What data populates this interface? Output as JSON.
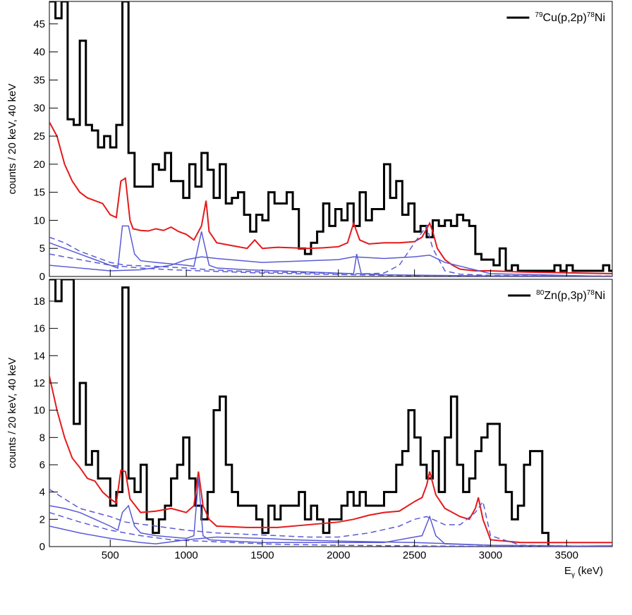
{
  "figure": {
    "xlabel_main": "E",
    "xlabel_sub": "γ",
    "xlabel_unit": " (keV)"
  },
  "colors": {
    "data": "#000000",
    "fit": "#e41a1c",
    "component": "#5a5ad6",
    "axis": "#000000"
  },
  "chart_data": [
    {
      "type": "histogram",
      "title": "",
      "legend": {
        "label_sup1": "79",
        "label_part1": "Cu(p,2p)",
        "label_sup2": "78",
        "label_part2": "Ni",
        "position": "top-right"
      },
      "ylabel": "counts / 20 keV, 40 keV",
      "xlim": [
        100,
        3800
      ],
      "ylim": [
        0,
        49
      ],
      "xticks": [
        500,
        1000,
        1500,
        2000,
        2500,
        3000,
        3500
      ],
      "yticks": [
        0,
        5,
        10,
        15,
        20,
        25,
        30,
        35,
        40,
        45
      ],
      "grid": false,
      "series": [
        {
          "role": "data 40 keV bins",
          "bin_width": 40,
          "x_start": 100,
          "values": [
            49,
            46,
            49,
            28,
            27,
            42,
            27,
            26,
            23,
            25,
            23,
            27,
            49,
            22,
            16,
            16,
            16,
            20,
            19,
            22,
            17,
            17,
            14,
            20,
            16,
            22,
            19,
            14,
            20,
            13,
            14,
            15,
            11,
            8,
            11,
            10,
            15,
            13,
            13,
            15,
            12,
            5,
            4,
            6,
            8,
            13,
            9,
            12,
            10,
            13,
            9,
            15,
            10,
            12,
            12,
            20,
            14,
            17,
            11,
            13,
            8,
            9,
            7,
            10,
            9,
            10,
            9,
            11,
            10,
            9,
            4,
            3,
            3,
            2,
            5,
            1,
            2,
            1,
            1,
            1,
            1,
            1,
            1,
            2,
            1,
            2,
            1,
            1,
            1,
            1,
            1,
            2,
            1
          ]
        },
        {
          "role": "fit total",
          "x": [
            100,
            150,
            200,
            250,
            300,
            350,
            400,
            450,
            500,
            540,
            570,
            600,
            630,
            650,
            700,
            750,
            800,
            850,
            900,
            950,
            1000,
            1050,
            1100,
            1130,
            1150,
            1200,
            1300,
            1400,
            1450,
            1500,
            1600,
            1700,
            1800,
            1900,
            2000,
            2060,
            2100,
            2140,
            2200,
            2300,
            2400,
            2500,
            2550,
            2580,
            2600,
            2620,
            2650,
            2700,
            2750,
            2800,
            2900,
            3000,
            3200,
            3400,
            3600,
            3800
          ],
          "y": [
            27.5,
            25,
            20,
            17,
            15,
            14,
            13.5,
            13,
            11,
            10.5,
            17,
            17.5,
            10,
            8.5,
            8.2,
            8.1,
            8.5,
            8.2,
            8.8,
            8,
            7.5,
            6.5,
            9,
            13.5,
            8,
            6,
            5.5,
            5,
            6.5,
            5,
            5.2,
            5.1,
            5,
            5.1,
            5.3,
            6,
            9.5,
            6.5,
            5.8,
            6,
            6,
            6.2,
            7,
            8.5,
            9.5,
            8,
            5,
            3,
            2,
            1.3,
            1,
            1,
            0.8,
            0.7,
            0.6,
            0.5
          ]
        },
        {
          "role": "component 1",
          "x": [
            100,
            200,
            300,
            400,
            500,
            600,
            800,
            1000,
            1100,
            1300,
            1500,
            1700,
            1900,
            2100,
            2200,
            2300,
            2400,
            2500,
            2580,
            2620,
            2700,
            2800,
            3000,
            3400,
            3800
          ],
          "y": [
            7,
            6,
            4.5,
            3.5,
            2.5,
            2,
            1.8,
            1.5,
            1.3,
            1,
            0.8,
            0.7,
            0.6,
            0.5,
            0.5,
            0.6,
            2,
            6,
            9,
            5,
            1,
            0.4,
            0.2,
            0.1,
            0.1
          ]
        },
        {
          "role": "component 2",
          "x": [
            100,
            200,
            300,
            400,
            500,
            550,
            580,
            620,
            660,
            700,
            800,
            1000,
            1050,
            1100,
            1150,
            1200,
            1400,
            1600,
            1800,
            2000,
            2100,
            2120,
            2150,
            2300,
            2600,
            3000,
            3800
          ],
          "y": [
            6,
            5,
            4,
            3,
            2,
            1.5,
            9,
            9,
            4,
            2.8,
            2.5,
            2,
            1.8,
            8,
            2,
            1.5,
            1.2,
            1,
            0.8,
            0.6,
            0.5,
            4,
            0.5,
            0.3,
            0.2,
            0.1,
            0.05
          ]
        },
        {
          "role": "component 3",
          "x": [
            100,
            300,
            500,
            700,
            900,
            1100,
            1300,
            1500,
            1700,
            1900,
            2100,
            2300,
            2500,
            2700,
            3000,
            3800
          ],
          "y": [
            4,
            3,
            2,
            1.5,
            1.2,
            1,
            0.8,
            0.6,
            0.5,
            0.4,
            0.3,
            0.2,
            0.15,
            0.1,
            0.05,
            0
          ]
        },
        {
          "role": "component 4",
          "x": [
            100,
            300,
            500,
            700,
            900,
            1000,
            1100,
            1200,
            1500,
            1800,
            2000,
            2100,
            2300,
            2500,
            2600,
            2700,
            3000,
            3800
          ],
          "y": [
            2,
            1.5,
            1,
            1.2,
            2,
            3,
            3.5,
            3.2,
            2.5,
            2.8,
            3,
            3.5,
            3.2,
            3.5,
            3.8,
            2.5,
            0.5,
            0
          ]
        }
      ]
    },
    {
      "type": "histogram",
      "title": "",
      "legend": {
        "label_sup1": "80",
        "label_part1": "Zn(p,3p)",
        "label_sup2": "78",
        "label_part2": "Ni",
        "position": "top-right"
      },
      "ylabel": "counts / 20 keV, 40 keV",
      "xlim": [
        100,
        3800
      ],
      "ylim": [
        0,
        19.6
      ],
      "xticks": [
        500,
        1000,
        1500,
        2000,
        2500,
        3000,
        3500
      ],
      "yticks": [
        0,
        2,
        4,
        6,
        8,
        10,
        12,
        14,
        16,
        18
      ],
      "grid": false,
      "series": [
        {
          "role": "data 40 keV bins",
          "bin_width": 40,
          "x_start": 100,
          "values": [
            20,
            18,
            20,
            20,
            9,
            12,
            6,
            7,
            5,
            5,
            3,
            4,
            19,
            5,
            4,
            6,
            2,
            1,
            2,
            3,
            5,
            6,
            8,
            5,
            3,
            2,
            4,
            10,
            11,
            6,
            4,
            3,
            3,
            3,
            2,
            1,
            3,
            2,
            3,
            3,
            3,
            4,
            2,
            3,
            2,
            1,
            2,
            2,
            3,
            4,
            3,
            4,
            3,
            3,
            3,
            4,
            4,
            6,
            7,
            10,
            8,
            6,
            5,
            7,
            4,
            8,
            11,
            6,
            4,
            5,
            7,
            8,
            9,
            9,
            6,
            4,
            2,
            3,
            6,
            7,
            7,
            1,
            0,
            0,
            0,
            0,
            0,
            0,
            0,
            0,
            0,
            0,
            0
          ]
        },
        {
          "role": "fit total",
          "x": [
            100,
            150,
            200,
            250,
            300,
            350,
            400,
            450,
            500,
            540,
            570,
            600,
            630,
            700,
            800,
            900,
            1000,
            1050,
            1080,
            1110,
            1150,
            1200,
            1400,
            1600,
            1800,
            2000,
            2100,
            2200,
            2300,
            2400,
            2500,
            2550,
            2580,
            2600,
            2640,
            2700,
            2800,
            2860,
            2900,
            2920,
            2950,
            3000,
            3200,
            3500,
            3800
          ],
          "y": [
            12.5,
            10,
            8,
            6.5,
            5.8,
            5,
            4.8,
            4,
            3.5,
            3.2,
            5.6,
            5.5,
            3.5,
            2.5,
            2.6,
            2.8,
            2.5,
            3,
            5.5,
            3,
            2,
            1.5,
            1.4,
            1.4,
            1.6,
            1.8,
            2,
            2.3,
            2.5,
            2.6,
            3.3,
            3.6,
            4.5,
            5.5,
            3.8,
            2.8,
            2.2,
            2,
            2.8,
            3.6,
            2,
            0.5,
            0.3,
            0.3,
            0.3
          ]
        },
        {
          "role": "component 1",
          "x": [
            100,
            200,
            300,
            400,
            500,
            600,
            800,
            1000,
            1200,
            1400,
            1600,
            1800,
            2000,
            2200,
            2400,
            2500,
            2580,
            2620,
            2700,
            2800,
            2900,
            2950,
            3000,
            3200,
            3800
          ],
          "y": [
            4.2,
            3.5,
            2.8,
            2.5,
            2.2,
            1.8,
            1.5,
            1.2,
            1,
            0.9,
            0.8,
            0.7,
            0.7,
            1,
            1.5,
            2,
            2.2,
            2,
            1.6,
            1.6,
            2.5,
            3.3,
            0.8,
            0.1,
            0
          ]
        },
        {
          "role": "component 2",
          "x": [
            100,
            200,
            300,
            400,
            500,
            550,
            580,
            620,
            660,
            700,
            800,
            1000,
            1050,
            1080,
            1110,
            1150,
            1300,
            1500,
            1800,
            2000,
            2300,
            2550,
            2600,
            2640,
            2700,
            3000,
            3800
          ],
          "y": [
            3,
            2.8,
            2.5,
            2,
            1.5,
            1.2,
            2.5,
            3,
            1.5,
            1,
            0.8,
            0.6,
            0.8,
            5,
            0.8,
            0.5,
            0.4,
            0.3,
            0.3,
            0.3,
            0.3,
            0.8,
            2.2,
            0.8,
            0.2,
            0.1,
            0
          ]
        },
        {
          "role": "component 3",
          "x": [
            100,
            300,
            500,
            700,
            900,
            1100,
            1300,
            1500,
            1700,
            2000,
            2500,
            3000,
            3800
          ],
          "y": [
            2.5,
            1.8,
            1.2,
            0.8,
            0.5,
            0.4,
            0.3,
            0.2,
            0.15,
            0.1,
            0.05,
            0.02,
            0
          ]
        },
        {
          "role": "component 4",
          "x": [
            100,
            300,
            500,
            700,
            800,
            1000,
            1200,
            1500,
            1700,
            2000,
            2500,
            3000,
            3800
          ],
          "y": [
            1.5,
            1,
            0.6,
            0.3,
            0.2,
            0.5,
            0.7,
            0.6,
            0.5,
            0.4,
            0.3,
            0.1,
            0
          ]
        }
      ]
    }
  ]
}
